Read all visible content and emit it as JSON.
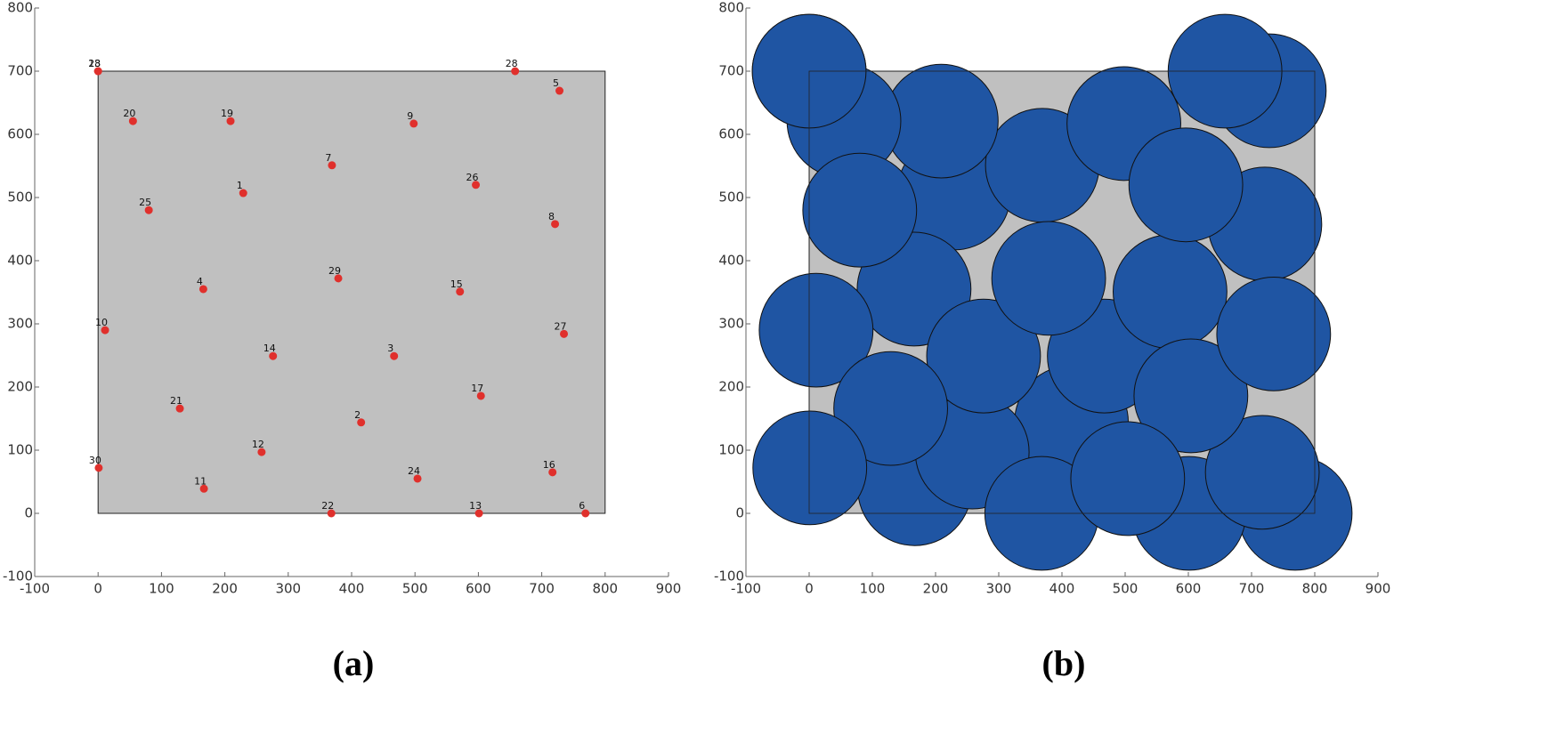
{
  "chart_data": [
    {
      "type": "scatter",
      "title": "(a)",
      "color": "#e0302c",
      "region_color": "#c0c0c0",
      "region_x": [
        0,
        800
      ],
      "region_y": [
        0,
        700
      ],
      "point_labels": [
        "1",
        "2",
        "3",
        "4",
        "5",
        "6",
        "7",
        "8",
        "9",
        "10",
        "11",
        "12",
        "13",
        "14",
        "15",
        "16",
        "17",
        "18",
        "19",
        "20",
        "21",
        "22",
        "23",
        "24",
        "25",
        "26",
        "27",
        "28",
        "29",
        "30"
      ],
      "x": [
        229,
        415,
        467,
        166,
        728,
        769,
        369,
        721,
        498,
        11,
        167,
        258,
        601,
        276,
        571,
        717,
        604,
        0,
        209,
        55,
        129,
        368,
        0,
        504,
        80,
        596,
        735,
        658,
        379,
        1
      ],
      "y": [
        507,
        144,
        249,
        355,
        669,
        0,
        551,
        458,
        617,
        290,
        39,
        97,
        0,
        249,
        351,
        65,
        186,
        700,
        621,
        621,
        166,
        0,
        700,
        55,
        480,
        520,
        284,
        700,
        372,
        72
      ],
      "xlim": [
        -100,
        900
      ],
      "ylim": [
        -100,
        800
      ],
      "xticks": [
        -100,
        0,
        100,
        200,
        300,
        400,
        500,
        600,
        700,
        800,
        900
      ],
      "yticks": [
        -100,
        0,
        100,
        200,
        300,
        400,
        500,
        600,
        700,
        800
      ]
    },
    {
      "type": "bubble",
      "title": "(b)",
      "color": "#1f55a3",
      "region_color": "#c0c0c0",
      "region_x": [
        0,
        800
      ],
      "region_y": [
        0,
        700
      ],
      "radius": 90,
      "x": [
        229,
        415,
        467,
        166,
        728,
        769,
        369,
        721,
        498,
        11,
        167,
        258,
        601,
        276,
        571,
        717,
        604,
        0,
        209,
        55,
        129,
        368,
        0,
        504,
        80,
        596,
        735,
        658,
        379,
        1
      ],
      "y": [
        507,
        144,
        249,
        355,
        669,
        0,
        551,
        458,
        617,
        290,
        39,
        97,
        0,
        249,
        351,
        65,
        186,
        700,
        621,
        621,
        166,
        0,
        700,
        55,
        480,
        520,
        284,
        700,
        372,
        72
      ],
      "xlim": [
        -100,
        900
      ],
      "ylim": [
        -100,
        800
      ],
      "xticks": [
        -100,
        0,
        100,
        200,
        300,
        400,
        500,
        600,
        700,
        800,
        900
      ],
      "yticks": [
        -100,
        0,
        100,
        200,
        300,
        400,
        500,
        600,
        700,
        800
      ]
    }
  ]
}
